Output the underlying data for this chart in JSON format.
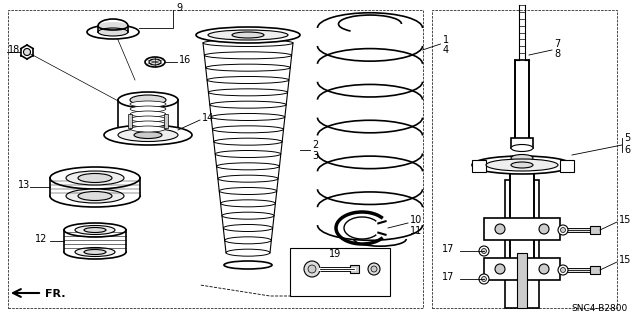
{
  "bg_color": "#ffffff",
  "lc": "#000000",
  "gc": "#999999",
  "lgc": "#cccccc",
  "diagram_id": "SNC4-B2800",
  "figsize": [
    6.4,
    3.19
  ],
  "dpi": 100,
  "lw": 0.8,
  "lw2": 1.2
}
